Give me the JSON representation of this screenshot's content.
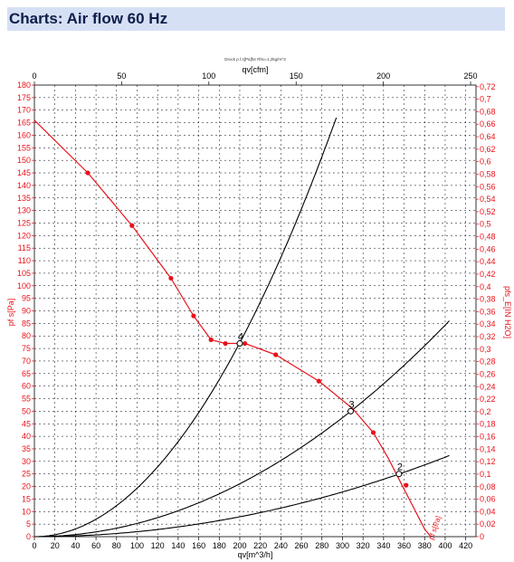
{
  "header": {
    "title": "Charts: Air flow 60 Hz"
  },
  "chart_data": {
    "type": "line",
    "title": "Druck p f.s[Pa]für Rho=1,2kg/m^3",
    "xlabel": "qv[m^3/h]",
    "xlabel_top": "qv[cfm]",
    "ylabel": "pf s[Pa]",
    "ylabel_right": "pfs_E[IN H2O]",
    "xlim": [
      0,
      430
    ],
    "ylim": [
      0,
      180
    ],
    "x_ticks": [
      0,
      20,
      40,
      60,
      80,
      100,
      120,
      140,
      160,
      180,
      200,
      220,
      240,
      260,
      280,
      300,
      320,
      340,
      360,
      380,
      400,
      420
    ],
    "x_tick_labels": [
      "0",
      "20",
      "40",
      "60",
      "80",
      "100",
      "120",
      "140",
      "160",
      "180",
      "200",
      "220",
      "240",
      "260",
      "280",
      "300",
      "320",
      "340",
      "360",
      "380",
      "400",
      "420"
    ],
    "x_top_ticks": [
      0,
      50,
      100,
      150,
      200,
      250
    ],
    "x_top_tick_labels": [
      "0",
      "50",
      "100",
      "150",
      "200",
      "250"
    ],
    "y_ticks": [
      0,
      5,
      10,
      15,
      20,
      25,
      30,
      35,
      40,
      45,
      50,
      55,
      60,
      65,
      70,
      75,
      80,
      85,
      90,
      95,
      100,
      105,
      110,
      115,
      120,
      125,
      130,
      135,
      140,
      145,
      150,
      155,
      160,
      165,
      170,
      175,
      180
    ],
    "y_tick_labels": [
      "0",
      "5",
      "10",
      "15",
      "20",
      "25",
      "30",
      "35",
      "40",
      "45",
      "50",
      "55",
      "60",
      "65",
      "70",
      "75",
      "80",
      "85",
      "90",
      "95",
      "100",
      "105",
      "110",
      "115",
      "120",
      "125",
      "130",
      "135",
      "140",
      "145",
      "150",
      "155",
      "160",
      "165",
      "170",
      "175",
      "180"
    ],
    "y_right_ticks": [
      0,
      0.02,
      0.04,
      0.06,
      0.08,
      0.1,
      0.12,
      0.14,
      0.16,
      0.18,
      0.2,
      0.22,
      0.24,
      0.26,
      0.28,
      0.3,
      0.32,
      0.34,
      0.36,
      0.38,
      0.4,
      0.42,
      0.44,
      0.46,
      0.48,
      0.5,
      0.52,
      0.54,
      0.56,
      0.58,
      0.6,
      0.62,
      0.64,
      0.66,
      0.68,
      0.7,
      0.72
    ],
    "y_right_tick_labels": [
      "0",
      "0,02",
      "0,04",
      "0,06",
      "0,08",
      "0,1",
      "0,12",
      "0,14",
      "0,16",
      "0,18",
      "0,2",
      "0,22",
      "0,24",
      "0,26",
      "0,28",
      "0,3",
      "0,32",
      "0,34",
      "0,36",
      "0,38",
      "0,4",
      "0,42",
      "0,44",
      "0,46",
      "0,48",
      "0,5",
      "0,52",
      "0,54",
      "0,56",
      "0,58",
      "0,6",
      "0,62",
      "0,64",
      "0,66",
      "0,68",
      "0,7",
      "0,72"
    ],
    "grid": true,
    "fan_curve": {
      "color": "#e8121b",
      "label": "pf s[Pa]",
      "points": [
        [
          0,
          166
        ],
        [
          52,
          145
        ],
        [
          95,
          124
        ],
        [
          133,
          103
        ],
        [
          155,
          88
        ],
        [
          172,
          78.5
        ],
        [
          186,
          77
        ],
        [
          205,
          77
        ],
        [
          235,
          72.5
        ],
        [
          277,
          62
        ],
        [
          310,
          51
        ],
        [
          330,
          41.5
        ],
        [
          345,
          31
        ],
        [
          358,
          20.5
        ],
        [
          370,
          11
        ],
        [
          380,
          3
        ],
        [
          386,
          0
        ]
      ],
      "markers": [
        [
          52,
          145
        ],
        [
          95,
          124
        ],
        [
          133,
          103
        ],
        [
          155,
          88
        ],
        [
          172,
          78.5
        ],
        [
          186,
          77
        ],
        [
          205,
          77
        ],
        [
          235,
          72.5
        ],
        [
          277,
          62
        ],
        [
          330,
          41.5
        ],
        [
          362,
          20.5
        ]
      ]
    },
    "system_curves": [
      {
        "color": "#000000",
        "k": 0.001932,
        "xmax": 295
      },
      {
        "color": "#000000",
        "k": 0.000527,
        "xmax": 405
      },
      {
        "color": "#000000",
        "k": 0.000198,
        "xmax": 405
      }
    ],
    "operating_points": [
      {
        "label": "4",
        "x": 200,
        "y": 77
      },
      {
        "label": "3",
        "x": 308,
        "y": 50
      },
      {
        "label": "2",
        "x": 355,
        "y": 25
      }
    ]
  }
}
